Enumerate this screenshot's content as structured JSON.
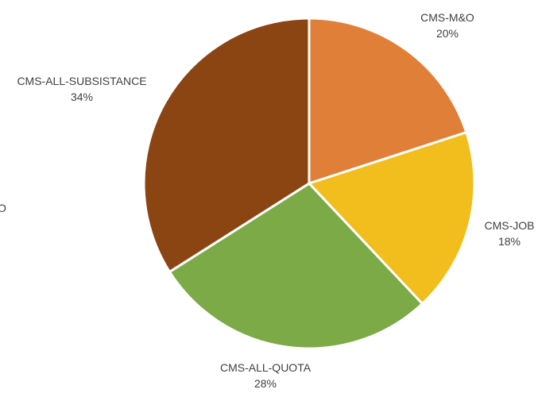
{
  "chart_data": {
    "type": "pie",
    "slices": [
      {
        "label": "CMS-M&O",
        "value": 20,
        "percent_label": "20%",
        "color": "#E07F38"
      },
      {
        "label": "CMS-JOB",
        "value": 18,
        "percent_label": "18%",
        "color": "#F2BE1E"
      },
      {
        "label": "CMS-ALL-QUOTA",
        "value": 28,
        "percent_label": "28%",
        "color": "#7BAA46"
      },
      {
        "label": "CMS-ALL-SUBSISTANCE",
        "value": 34,
        "percent_label": "34%",
        "color": "#8B4513"
      }
    ],
    "cropped_label_fragment": "O",
    "start_angle": "top (12 o'clock)",
    "direction": "clockwise",
    "slice_border_color": "#FFFFFF"
  }
}
